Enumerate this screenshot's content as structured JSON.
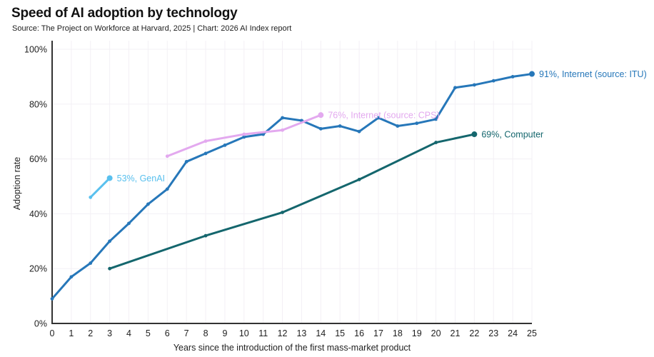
{
  "header": {
    "title": "Speed of AI adoption by technology",
    "subtitle": "Source: The Project on Workforce at Harvard, 2025 | Chart: 2026 AI Index report"
  },
  "colors": {
    "grid": "#f3f0f5",
    "axis": "#333333",
    "tick_text": "#1f1f1f",
    "background": "#ffffff"
  },
  "chart_data": {
    "type": "line",
    "title": "Speed of AI adoption by technology",
    "xlabel": "Years since the introduction of the first mass-market product",
    "ylabel": "Adoption rate",
    "xlim": [
      0,
      25
    ],
    "ylim": [
      0,
      100
    ],
    "grid": true,
    "legend_position": "end-of-line labels",
    "x_ticks": [
      0,
      1,
      2,
      3,
      4,
      5,
      6,
      7,
      8,
      9,
      10,
      11,
      12,
      13,
      14,
      15,
      16,
      17,
      18,
      19,
      20,
      21,
      22,
      23,
      24,
      25
    ],
    "y_ticks": [
      0,
      20,
      40,
      60,
      80,
      100
    ],
    "y_tick_suffix": "%",
    "series": [
      {
        "id": "internet-itu",
        "name": "Internet (source: ITU)",
        "label": "91%, Internet (source: ITU)",
        "color": "#2677b9",
        "x": [
          0,
          1,
          2,
          3,
          4,
          5,
          6,
          7,
          8,
          9,
          10,
          11,
          12,
          13,
          14,
          15,
          16,
          17,
          18,
          19,
          20,
          21,
          22,
          23,
          24,
          25
        ],
        "y": [
          9,
          17,
          22,
          30,
          36.5,
          43.5,
          49,
          59,
          62,
          65,
          68,
          69,
          75,
          74,
          71,
          72,
          70,
          75,
          72,
          73,
          74.5,
          86,
          87,
          88.5,
          90,
          91
        ]
      },
      {
        "id": "internet-cps",
        "name": "Internet (source: CPS)",
        "label": "76%, Internet (source: CPS)",
        "color": "#e3a9ef",
        "x": [
          6,
          8,
          10,
          12,
          14
        ],
        "y": [
          61,
          66.5,
          69,
          70.5,
          76
        ]
      },
      {
        "id": "genai",
        "name": "GenAI",
        "label": "53%, GenAI",
        "color": "#59c0ee",
        "x": [
          2,
          3
        ],
        "y": [
          46,
          53
        ]
      },
      {
        "id": "computer",
        "name": "Computer",
        "label": "69%, Computer",
        "color": "#14666d",
        "x": [
          3,
          8,
          12,
          16,
          20,
          22
        ],
        "y": [
          20,
          32,
          40.5,
          52.5,
          66,
          69
        ]
      }
    ]
  }
}
